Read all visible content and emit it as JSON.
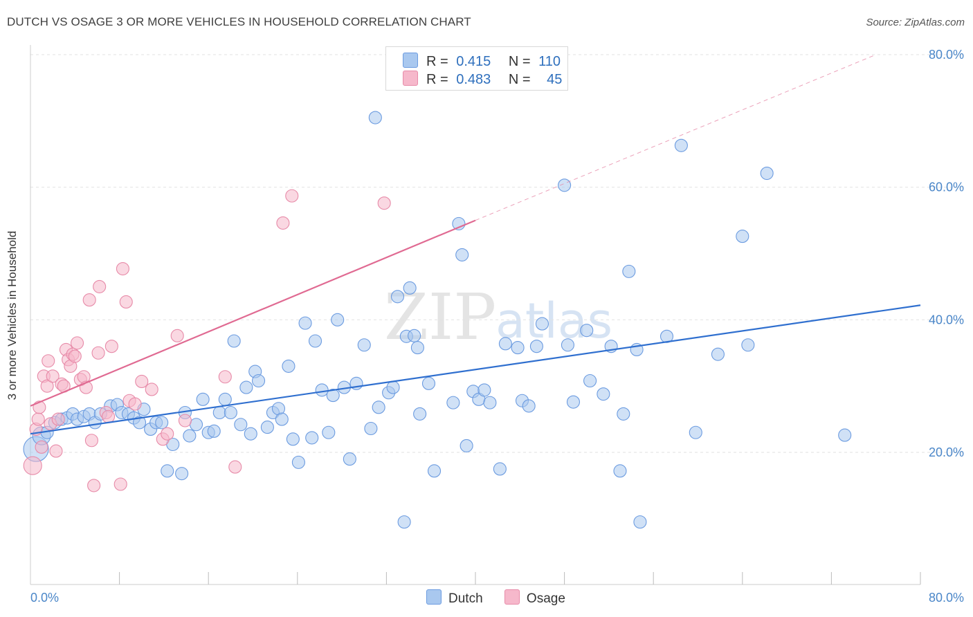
{
  "title": "DUTCH VS OSAGE 3 OR MORE VEHICLES IN HOUSEHOLD CORRELATION CHART",
  "source": "Source: ZipAtlas.com",
  "watermark": {
    "zip": "ZIP",
    "atlas": "atlas"
  },
  "colors": {
    "dutch_fill": "#a9c8ef",
    "dutch_stroke": "#6b9be0",
    "dutch_line": "#2f6fcf",
    "osage_fill": "#f6b8cb",
    "osage_stroke": "#e78aa8",
    "osage_line": "#e06a92",
    "tick_text": "#4a86c8",
    "grid": "#e2e2e2"
  },
  "legend": {
    "dutch": {
      "r_label": "R =",
      "r_value": "0.415",
      "n_label": "N =",
      "n_value": "110"
    },
    "osage": {
      "r_label": "R =",
      "r_value": "0.483",
      "n_label": "N =",
      "n_value": "45"
    }
  },
  "bottom_legend": {
    "dutch": "Dutch",
    "osage": "Osage"
  },
  "chart_data": {
    "type": "scatter",
    "title": "DUTCH VS OSAGE 3 OR MORE VEHICLES IN HOUSEHOLD CORRELATION CHART",
    "xlabel": "",
    "ylabel": "3 or more Vehicles in Household",
    "xlim": [
      0,
      80
    ],
    "ylim": [
      0,
      82
    ],
    "x_tick_labels": {
      "left": "0.0%",
      "right": "80.0%"
    },
    "y_ticks": [
      {
        "value": 20,
        "label": "20.0%"
      },
      {
        "value": 40,
        "label": "40.0%"
      },
      {
        "value": 60,
        "label": "60.0%"
      },
      {
        "value": 80,
        "label": "80.0%"
      }
    ],
    "series": [
      {
        "name": "Dutch",
        "r": 0.415,
        "n": 110,
        "trend": {
          "x0": 0,
          "y0": 22.8,
          "x1": 80,
          "y1": 42.2
        },
        "points": [
          [
            0.5,
            20.5,
            3
          ],
          [
            1.0,
            22.5,
            2
          ],
          [
            1.5,
            23.0,
            1
          ],
          [
            2.2,
            24.5,
            1
          ],
          [
            2.8,
            25.0,
            1
          ],
          [
            3.3,
            25.2,
            1
          ],
          [
            3.8,
            25.8,
            1
          ],
          [
            4.2,
            25.0,
            1
          ],
          [
            4.8,
            25.4,
            1
          ],
          [
            5.3,
            25.8,
            1
          ],
          [
            5.8,
            24.5,
            1
          ],
          [
            6.3,
            25.8,
            1
          ],
          [
            7.2,
            27.0,
            1
          ],
          [
            7.8,
            27.2,
            1
          ],
          [
            8.2,
            26.0,
            1
          ],
          [
            8.8,
            25.8,
            1
          ],
          [
            9.3,
            25.2,
            1
          ],
          [
            9.8,
            24.5,
            1
          ],
          [
            10.2,
            26.5,
            1
          ],
          [
            10.8,
            23.5,
            1
          ],
          [
            11.3,
            24.5,
            1
          ],
          [
            11.8,
            24.5,
            1
          ],
          [
            12.3,
            17.2,
            1
          ],
          [
            12.8,
            21.2,
            1
          ],
          [
            13.6,
            16.8,
            1
          ],
          [
            13.9,
            26.0,
            1
          ],
          [
            14.3,
            22.5,
            1
          ],
          [
            14.9,
            24.2,
            1
          ],
          [
            15.5,
            28.0,
            1
          ],
          [
            16.0,
            23.0,
            1
          ],
          [
            16.5,
            23.2,
            1
          ],
          [
            17.0,
            26.0,
            1
          ],
          [
            17.5,
            28.0,
            1
          ],
          [
            18.0,
            26.0,
            1
          ],
          [
            18.3,
            36.8,
            1
          ],
          [
            18.9,
            24.2,
            1
          ],
          [
            19.4,
            29.8,
            1
          ],
          [
            19.8,
            22.8,
            1
          ],
          [
            20.2,
            32.2,
            1
          ],
          [
            20.5,
            30.8,
            1
          ],
          [
            21.3,
            23.8,
            1
          ],
          [
            21.8,
            26.0,
            1
          ],
          [
            22.3,
            26.6,
            1
          ],
          [
            22.6,
            25.0,
            1
          ],
          [
            23.2,
            33.0,
            1
          ],
          [
            23.6,
            22.0,
            1
          ],
          [
            24.1,
            18.5,
            1
          ],
          [
            24.7,
            39.5,
            1
          ],
          [
            25.3,
            22.2,
            1
          ],
          [
            25.6,
            36.8,
            1
          ],
          [
            26.2,
            29.4,
            1
          ],
          [
            26.8,
            23.0,
            1
          ],
          [
            27.2,
            28.6,
            1
          ],
          [
            27.6,
            40.0,
            1
          ],
          [
            28.2,
            29.8,
            1
          ],
          [
            28.7,
            19.0,
            1
          ],
          [
            29.3,
            30.4,
            1
          ],
          [
            30.0,
            36.2,
            1
          ],
          [
            30.6,
            23.6,
            1
          ],
          [
            31.3,
            26.8,
            1
          ],
          [
            31.0,
            70.5,
            1
          ],
          [
            32.2,
            29.0,
            1
          ],
          [
            32.6,
            29.8,
            1
          ],
          [
            33.0,
            43.5,
            1
          ],
          [
            33.6,
            9.5,
            1
          ],
          [
            33.8,
            37.5,
            1
          ],
          [
            34.1,
            44.8,
            1
          ],
          [
            34.5,
            37.6,
            1
          ],
          [
            34.8,
            35.8,
            1
          ],
          [
            35.0,
            25.8,
            1
          ],
          [
            35.8,
            30.4,
            1
          ],
          [
            36.3,
            17.2,
            1
          ],
          [
            38.0,
            27.5,
            1
          ],
          [
            38.5,
            54.5,
            1
          ],
          [
            38.8,
            49.8,
            1
          ],
          [
            39.2,
            21.0,
            1
          ],
          [
            39.8,
            29.2,
            1
          ],
          [
            40.3,
            28.0,
            1
          ],
          [
            40.8,
            29.4,
            1
          ],
          [
            41.3,
            27.5,
            1
          ],
          [
            42.2,
            17.5,
            1
          ],
          [
            42.7,
            36.4,
            1
          ],
          [
            43.8,
            35.8,
            1
          ],
          [
            44.2,
            27.8,
            1
          ],
          [
            44.8,
            27.0,
            1
          ],
          [
            45.5,
            36.0,
            1
          ],
          [
            46.0,
            39.4,
            1
          ],
          [
            48.0,
            60.3,
            1
          ],
          [
            48.3,
            36.2,
            1
          ],
          [
            48.8,
            27.6,
            1
          ],
          [
            50.0,
            38.4,
            1
          ],
          [
            50.3,
            30.8,
            1
          ],
          [
            51.5,
            28.8,
            1
          ],
          [
            52.2,
            36.0,
            1
          ],
          [
            53.0,
            17.2,
            1
          ],
          [
            53.3,
            25.8,
            1
          ],
          [
            53.8,
            47.3,
            1
          ],
          [
            54.5,
            35.5,
            1
          ],
          [
            54.8,
            9.5,
            1
          ],
          [
            57.2,
            37.5,
            1
          ],
          [
            58.5,
            66.3,
            1
          ],
          [
            59.8,
            23.0,
            1
          ],
          [
            61.8,
            34.8,
            1
          ],
          [
            64.0,
            52.6,
            1
          ],
          [
            64.5,
            36.2,
            1
          ],
          [
            66.2,
            62.1,
            1
          ],
          [
            73.2,
            22.6,
            1
          ]
        ]
      },
      {
        "name": "Osage",
        "r": 0.483,
        "n": 45,
        "trend": {
          "x0": 0,
          "y0": 27.0,
          "x1": 40,
          "y1": 55.0,
          "dashed_to": {
            "x": 76,
            "y": 80.0
          }
        },
        "points": [
          [
            0.2,
            18.0,
            2
          ],
          [
            0.5,
            23.5,
            1
          ],
          [
            0.7,
            25.0,
            1
          ],
          [
            0.8,
            26.8,
            1
          ],
          [
            1.0,
            20.8,
            1
          ],
          [
            1.2,
            31.5,
            1
          ],
          [
            1.5,
            30.0,
            1
          ],
          [
            1.6,
            33.8,
            1
          ],
          [
            1.8,
            24.3,
            1
          ],
          [
            2.0,
            31.5,
            1
          ],
          [
            2.3,
            20.2,
            1
          ],
          [
            2.5,
            25.0,
            1
          ],
          [
            2.8,
            30.3,
            1
          ],
          [
            3.0,
            30.0,
            1
          ],
          [
            3.2,
            35.5,
            1
          ],
          [
            3.4,
            34.0,
            1
          ],
          [
            3.6,
            33.0,
            1
          ],
          [
            3.8,
            34.8,
            1
          ],
          [
            4.0,
            34.5,
            1
          ],
          [
            4.2,
            36.5,
            1
          ],
          [
            4.5,
            31.0,
            1
          ],
          [
            4.8,
            31.4,
            1
          ],
          [
            5.0,
            29.8,
            1
          ],
          [
            5.3,
            43.0,
            1
          ],
          [
            5.5,
            21.8,
            1
          ],
          [
            5.7,
            15.0,
            1
          ],
          [
            6.1,
            35.0,
            1
          ],
          [
            6.2,
            45.0,
            1
          ],
          [
            6.8,
            26.0,
            1
          ],
          [
            7.0,
            25.4,
            1
          ],
          [
            7.3,
            36.0,
            1
          ],
          [
            8.1,
            15.2,
            1
          ],
          [
            8.3,
            47.7,
            1
          ],
          [
            8.6,
            42.7,
            1
          ],
          [
            8.9,
            27.8,
            1
          ],
          [
            9.4,
            27.3,
            1
          ],
          [
            10.0,
            30.7,
            1
          ],
          [
            10.9,
            29.5,
            1
          ],
          [
            11.9,
            22.0,
            1
          ],
          [
            12.3,
            22.8,
            1
          ],
          [
            13.2,
            37.6,
            1
          ],
          [
            13.9,
            24.8,
            1
          ],
          [
            17.5,
            31.4,
            1
          ],
          [
            18.4,
            17.8,
            1
          ],
          [
            22.7,
            54.6,
            1
          ],
          [
            23.5,
            58.7,
            1
          ],
          [
            31.8,
            57.6,
            1
          ]
        ]
      }
    ]
  }
}
